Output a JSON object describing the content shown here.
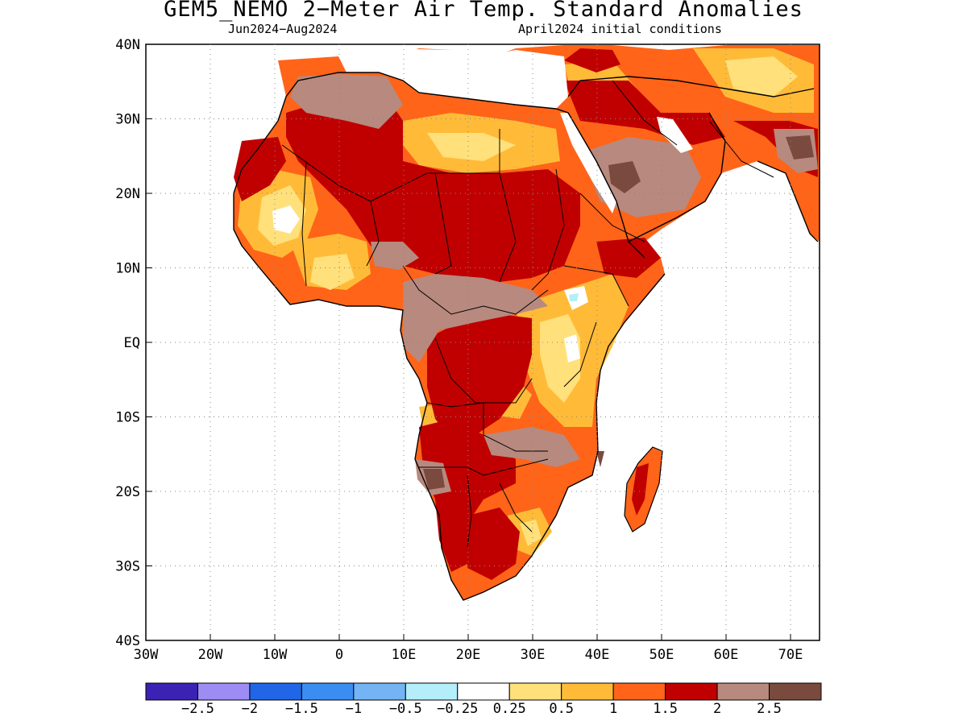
{
  "title": "GEM5_NEMO 2−Meter Air Temp. Standard Anomalies",
  "subtitle_left": "Jun2024−Aug2024",
  "subtitle_right": "April2024 initial conditions",
  "map": {
    "lon_ticks": [
      "30W",
      "20W",
      "10W",
      "0",
      "10E",
      "20E",
      "30E",
      "40E",
      "50E",
      "60E",
      "70E"
    ],
    "lat_ticks": [
      "40N",
      "30N",
      "20N",
      "10N",
      "EQ",
      "10S",
      "20S",
      "30S",
      "40S"
    ],
    "grid": true,
    "grid_style": "dotted"
  },
  "legend": {
    "colors": [
      "#3b22b5",
      "#9c8cf4",
      "#2066e6",
      "#3a8ef2",
      "#74b4f5",
      "#b4eefa",
      "#ffffff",
      "#ffe07a",
      "#ffbb38",
      "#ff6418",
      "#c00000",
      "#b8897e",
      "#7a4a3f"
    ],
    "labels": [
      "−2.5",
      "−2",
      "−1.5",
      "−1",
      "−0.5",
      "−0.25",
      "0.25",
      "0.5",
      "1",
      "1.5",
      "2",
      "2.5"
    ]
  },
  "anomaly_colors": {
    "positive_weak": "#ffe07a",
    "positive_low": "#ffbb38",
    "positive_mid": "#ff6418",
    "positive_high": "#c00000",
    "positive_very_high": "#b8897e",
    "positive_extreme": "#7a4a3f",
    "slight_negative": "#b4eefa"
  }
}
